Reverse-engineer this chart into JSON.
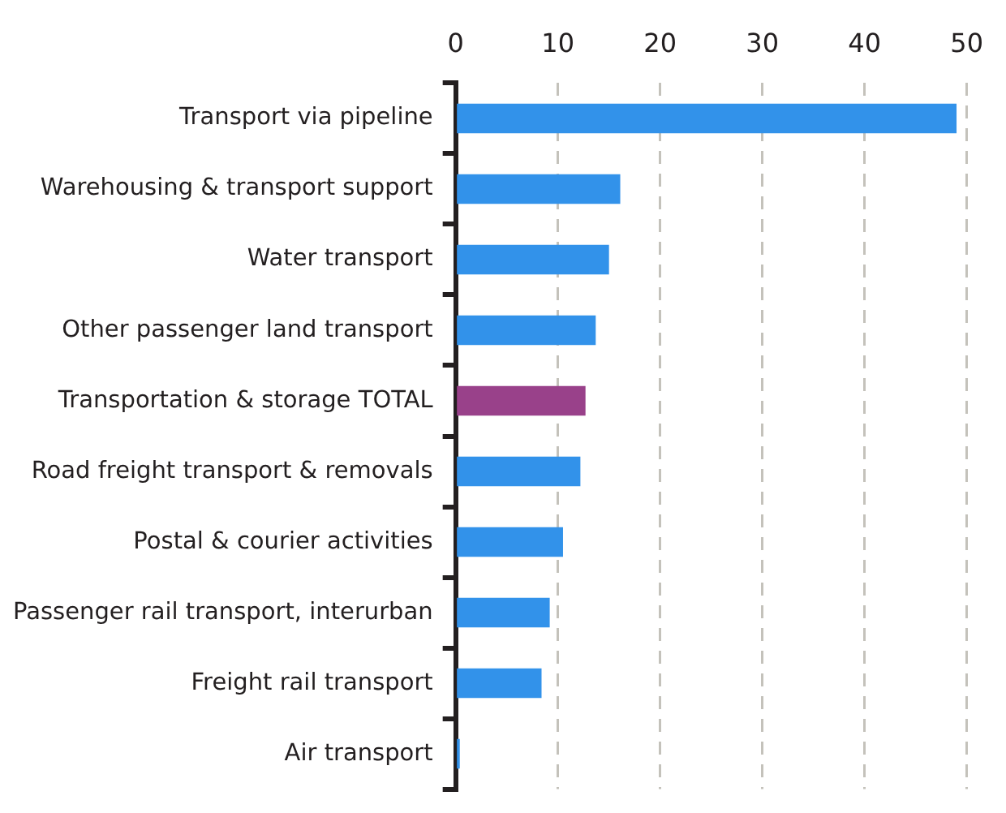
{
  "chart_data": {
    "type": "bar",
    "orientation": "horizontal",
    "categories": [
      "Transport via pipeline",
      "Warehousing & transport support",
      "Water transport",
      "Other passenger land transport",
      "Transportation & storage TOTAL",
      "Road freight transport & removals",
      "Postal & courier activities",
      "Passenger rail transport, interurban",
      "Freight rail transport",
      "Air transport"
    ],
    "values": [
      49.0,
      16.1,
      15.0,
      13.7,
      12.7,
      12.2,
      10.5,
      9.2,
      8.4,
      0.4
    ],
    "colors": [
      "#3292ea",
      "#3292ea",
      "#3292ea",
      "#3292ea",
      "#99418a",
      "#3292ea",
      "#3292ea",
      "#3292ea",
      "#3292ea",
      "#3292ea"
    ],
    "xlim": [
      0,
      50
    ],
    "xticks": [
      0,
      10,
      20,
      30,
      40,
      50
    ],
    "grid": "x",
    "legend": false
  }
}
